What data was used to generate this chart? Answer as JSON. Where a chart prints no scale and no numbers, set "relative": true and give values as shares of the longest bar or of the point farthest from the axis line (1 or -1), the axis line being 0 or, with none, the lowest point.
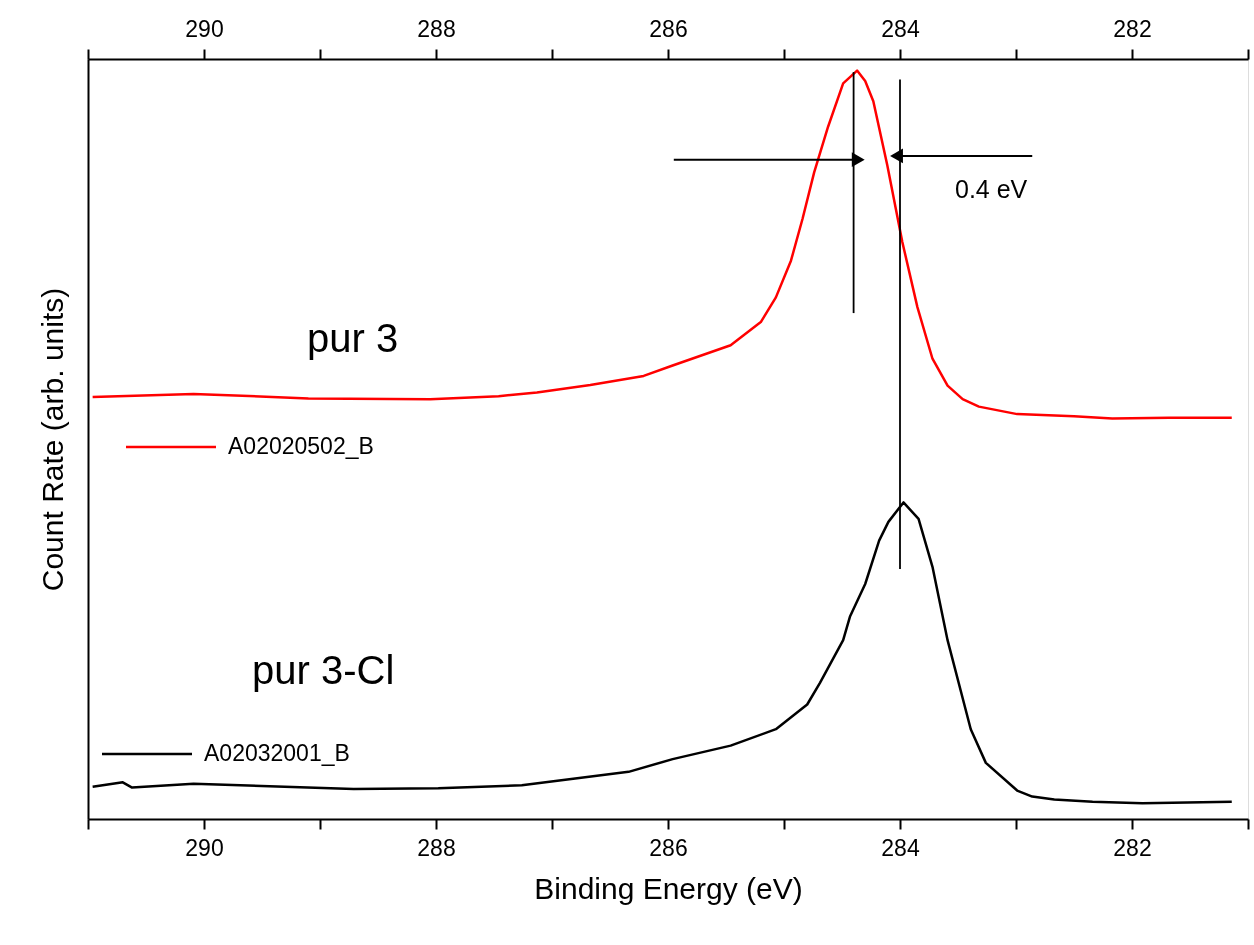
{
  "chart_data": {
    "type": "line",
    "relative": true,
    "xlabel": "Binding Energy (eV)",
    "ylabel": "Count Rate (arb. units)",
    "xlim": [
      291,
      281
    ],
    "x2lim": [
      291,
      281
    ],
    "xticks": [
      {
        "value": 291,
        "label": null
      },
      290,
      {
        "value": 289,
        "label": null
      },
      288,
      {
        "value": 287,
        "label": null
      },
      286,
      {
        "value": 285,
        "label": null
      },
      284,
      {
        "value": 283,
        "label": null
      },
      282,
      {
        "value": 281,
        "label": null
      }
    ],
    "x2ticks": [
      {
        "value": 291,
        "label": null
      },
      290,
      {
        "value": 289,
        "label": null
      },
      288,
      {
        "value": 287,
        "label": null
      },
      286,
      {
        "value": 285,
        "label": null
      },
      284,
      {
        "value": 283,
        "label": null
      },
      282,
      {
        "value": 281,
        "label": null
      }
    ],
    "grid": false,
    "legend": "left",
    "series": [
      {
        "name": "A02020502_B",
        "color": "#ff0000",
        "x": [
          290.96,
          290.09,
          289.1,
          288.05,
          287.46,
          287.13,
          286.67,
          286.21,
          285.96,
          285.46,
          285.2,
          285.07,
          284.94,
          284.84,
          284.74,
          284.62,
          284.49,
          284.37,
          284.3,
          284.23,
          284.11,
          283.98,
          283.85,
          283.72,
          283.59,
          283.46,
          283.32,
          282.99,
          282.5,
          282.17,
          281.68,
          281.14
        ],
        "values": [
          0.564,
          0.568,
          0.562,
          0.561,
          0.565,
          0.57,
          0.58,
          0.592,
          0.606,
          0.633,
          0.664,
          0.697,
          0.746,
          0.802,
          0.864,
          0.925,
          0.983,
          1.0,
          0.986,
          0.959,
          0.874,
          0.771,
          0.684,
          0.615,
          0.579,
          0.561,
          0.551,
          0.541,
          0.538,
          0.535,
          0.536,
          0.536
        ]
      },
      {
        "name": "A02032001_B",
        "color": "#000000",
        "x": [
          290.96,
          290.7,
          290.62,
          290.09,
          288.71,
          287.98,
          287.26,
          286.8,
          286.34,
          285.96,
          285.46,
          285.07,
          284.8,
          284.69,
          284.49,
          284.43,
          284.3,
          284.18,
          284.1,
          283.97,
          283.84,
          283.72,
          283.59,
          283.39,
          283.26,
          282.99,
          282.86,
          282.67,
          282.34,
          281.91,
          281.14
        ],
        "values": [
          0.043,
          0.049,
          0.042,
          0.047,
          0.04,
          0.041,
          0.045,
          0.054,
          0.063,
          0.08,
          0.098,
          0.12,
          0.153,
          0.182,
          0.239,
          0.271,
          0.314,
          0.372,
          0.397,
          0.423,
          0.401,
          0.337,
          0.239,
          0.12,
          0.075,
          0.038,
          0.03,
          0.026,
          0.023,
          0.021,
          0.023
        ]
      },
      {
        "type": "line",
        "color": "#000000",
        "x": [
          284.4,
          284.4
        ],
        "values": [
          0.998,
          0.676
        ]
      },
      {
        "type": "line",
        "color": "#000000",
        "x": [
          284.0,
          284.0
        ],
        "values": [
          0.988,
          0.334
        ]
      }
    ],
    "annotations": [
      "pur 3",
      "pur 3-Cl",
      "0.4 eV"
    ]
  }
}
